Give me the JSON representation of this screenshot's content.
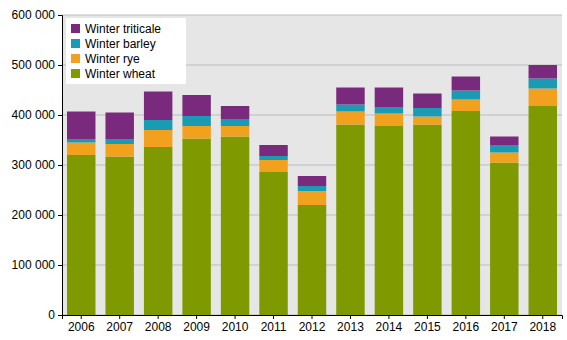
{
  "chart_data": {
    "type": "bar",
    "stacked": true,
    "grid": true,
    "legend": "upper left",
    "categories": [
      "2006",
      "2007",
      "2008",
      "2009",
      "2010",
      "2011",
      "2012",
      "2013",
      "2014",
      "2015",
      "2016",
      "2017",
      "2018"
    ],
    "series": [
      {
        "name": "Winter wheat",
        "color": "#7f9a00",
        "values": [
          320000,
          317000,
          336000,
          353000,
          357000,
          286000,
          220000,
          381000,
          378000,
          381000,
          408000,
          305000,
          418000
        ]
      },
      {
        "name": "Winter rye",
        "color": "#f2a11f",
        "values": [
          25000,
          25000,
          34000,
          25000,
          21000,
          24000,
          28000,
          26000,
          25000,
          16000,
          23000,
          20000,
          35000
        ]
      },
      {
        "name": "Winter barley",
        "color": "#1a9ab3",
        "values": [
          7000,
          10000,
          20000,
          20000,
          14000,
          8000,
          10000,
          14000,
          13000,
          17000,
          18000,
          15000,
          20000
        ]
      },
      {
        "name": "Winter triticale",
        "color": "#7a2a7c",
        "values": [
          55000,
          53000,
          57000,
          42000,
          26000,
          22000,
          20000,
          34000,
          39000,
          29000,
          28000,
          17000,
          27000
        ]
      }
    ],
    "ylim": [
      0,
      600000
    ],
    "yticks": [
      0,
      {
        "value": 100000,
        "label": "100 000"
      },
      {
        "value": 200000,
        "label": "200 000"
      },
      {
        "value": 300000,
        "label": "300 000"
      },
      {
        "value": 400000,
        "label": "400 000"
      },
      {
        "value": 500000,
        "label": "500 000"
      },
      {
        "value": 600000,
        "label": "600 000"
      }
    ]
  }
}
